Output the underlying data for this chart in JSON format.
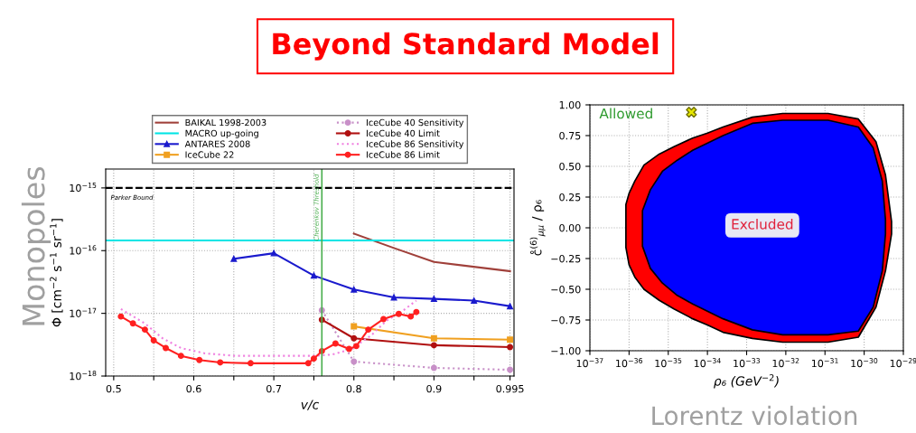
{
  "chart_data": [
    {
      "type": "other",
      "title": "Beyond Standard Model"
    },
    {
      "type": "line",
      "xlabel": "v/c",
      "ylabel": "Φ [cm$^{−2}$ s$^{−1}$ sr$^{−1}$]",
      "log": "y",
      "grid": true,
      "legend": "top",
      "xlim": [
        0.49,
        1.0
      ],
      "ylim": [
        1e-18,
        2e-15
      ],
      "xticks": [
        0.5,
        {
          "value": 0.55,
          "label": null
        },
        0.6,
        {
          "value": 0.65,
          "label": null
        },
        0.7,
        {
          "value": 0.75,
          "label": null
        },
        0.8,
        {
          "value": 0.85,
          "label": null
        },
        0.9,
        {
          "value": 0.95,
          "label": null
        },
        0.995
      ],
      "yticks": [
        {
          "value": 1e-18,
          "label": "10$^{−18}$"
        },
        {
          "value": 1e-17,
          "label": "10$^{−17}$"
        },
        {
          "value": 1e-16,
          "label": "10$^{−16}$"
        },
        {
          "value": 1e-15,
          "label": "10$^{−15}$"
        }
      ],
      "ref_lines": [
        {
          "axis": "y",
          "value": 1e-15,
          "label": "Parker Bound",
          "color": "#000000",
          "line_style": "dashed"
        },
        {
          "axis": "x",
          "value": 0.76,
          "label": "Cherenkov Threshold",
          "color": "#4caf50",
          "line_style": "solid"
        }
      ],
      "annotations": [
        "Monopoles"
      ],
      "series": [
        {
          "name": "BAIKAL 1998-2003",
          "color": "#a0403a",
          "marker": "none",
          "line_style": "solid",
          "x": [
            0.8,
            0.85,
            0.9,
            0.995
          ],
          "values": [
            1.87e-16,
            1.1e-16,
            6.6e-17,
            4.7e-17
          ]
        },
        {
          "name": "MACRO up-going",
          "color": "#00e5e5",
          "marker": "none",
          "line_style": "solid",
          "x": [
            0.49,
            1.0
          ],
          "values": [
            1.45e-16,
            1.45e-16
          ]
        },
        {
          "name": "ANTARES 2008",
          "color": "#1a1acd",
          "marker": "triangle",
          "line_style": "solid",
          "x": [
            0.65,
            0.7,
            0.75,
            0.8,
            0.85,
            0.9,
            0.95,
            0.995
          ],
          "values": [
            7.4e-17,
            9.1e-17,
            4e-17,
            2.4e-17,
            1.8e-17,
            1.7e-17,
            1.6e-17,
            1.3e-17
          ]
        },
        {
          "name": "IceCube 22",
          "color": "#f0a020",
          "marker": "square",
          "line_style": "solid",
          "x": [
            0.8,
            0.9,
            0.995
          ],
          "values": [
            6.2e-18,
            4e-18,
            3.8e-18
          ]
        },
        {
          "name": "IceCube 40 Sensitivity",
          "color": "#c890c8",
          "marker": "circle",
          "line_style": "dotted",
          "x": [
            0.76,
            0.8,
            0.9,
            0.995
          ],
          "values": [
            1.12e-17,
            1.7e-18,
            1.35e-18,
            1.26e-18
          ]
        },
        {
          "name": "IceCube 40 Limit",
          "color": "#b01010",
          "marker": "circle",
          "line_style": "solid",
          "x": [
            0.76,
            0.8,
            0.9,
            0.995
          ],
          "values": [
            7.9e-18,
            4e-18,
            3.1e-18,
            2.9e-18
          ]
        },
        {
          "name": "IceCube 86 Sensitivity",
          "color": "#f080e0",
          "marker": "none",
          "line_style": "dotted",
          "x": [
            0.509,
            0.539,
            0.561,
            0.584,
            0.614,
            0.652,
            0.709,
            0.75,
            0.773,
            0.797,
            0.822,
            0.841,
            0.86,
            0.878
          ],
          "values": [
            1.17e-17,
            6.9e-18,
            4e-18,
            2.8e-18,
            2.3e-18,
            2.1e-18,
            2.1e-18,
            2.1e-18,
            2.2e-18,
            2.7e-18,
            4.5e-18,
            7.7e-18,
            1.07e-17,
            1.6e-17
          ]
        },
        {
          "name": "IceCube 86 Limit",
          "color": "#ff2020",
          "marker": "circle",
          "line_style": "solid",
          "x": [
            0.509,
            0.524,
            0.539,
            0.55,
            0.565,
            0.584,
            0.607,
            0.633,
            0.671,
            0.743,
            0.75,
            0.76,
            0.777,
            0.794,
            0.803,
            0.818,
            0.837,
            0.856,
            0.871,
            0.878
          ],
          "values": [
            8.9e-18,
            6.9e-18,
            5.5e-18,
            3.7e-18,
            2.8e-18,
            2.1e-18,
            1.8e-18,
            1.65e-18,
            1.6e-18,
            1.6e-18,
            1.9e-18,
            2.5e-18,
            3.3e-18,
            2.7e-18,
            3e-18,
            5.5e-18,
            8.1e-18,
            9.8e-18,
            8.9e-18,
            1.05e-17
          ]
        }
      ]
    },
    {
      "type": "area",
      "xlabel": "ρ₆ (GeV$^{−2}$)",
      "ylabel": "c̊$^{(6)}$$_{μμ}$ / ρ₆",
      "log": "x",
      "grid": true,
      "xlim": [
        1e-37,
        1e-29
      ],
      "ylim": [
        -1.0,
        1.0
      ],
      "xticks": [
        {
          "value": 1e-37,
          "label": "10$^{−37}$"
        },
        {
          "value": 1e-36,
          "label": "10$^{−36}$"
        },
        {
          "value": 1e-35,
          "label": "10$^{−35}$"
        },
        {
          "value": 1e-34,
          "label": "10$^{−34}$"
        },
        {
          "value": 1e-33,
          "label": "10$^{−33}$"
        },
        {
          "value": 1e-32,
          "label": "10$^{−32}$"
        },
        {
          "value": 1e-31,
          "label": "10$^{−31}$"
        },
        {
          "value": 1e-30,
          "label": "10$^{−30}$"
        },
        {
          "value": 1e-29,
          "label": "10$^{−29}$"
        }
      ],
      "yticks": [
        {
          "value": -1.0,
          "label": "−1.00"
        },
        {
          "value": -0.75,
          "label": "−0.75"
        },
        {
          "value": -0.5,
          "label": "−0.50"
        },
        {
          "value": -0.25,
          "label": "−0.25"
        },
        {
          "value": 0.0,
          "label": "0.00"
        },
        {
          "value": 0.25,
          "label": "0.25"
        },
        {
          "value": 0.5,
          "label": "0.50"
        },
        {
          "value": 0.75,
          "label": "0.75"
        },
        {
          "value": 1.0,
          "label": "1.00"
        }
      ],
      "annotations": [
        "Allowed",
        "Excluded",
        "Lorentz violation"
      ],
      "series": [
        {
          "type": "area",
          "color": "#ff0000",
          "x": [
            8.3e-37,
            1e-36,
            1.4e-36,
            2.4e-36,
            5.9e-36,
            1.4e-35,
            4.2e-35,
            1e-34,
            2.5e-34,
            1.4e-33,
            8.3e-33,
            1.2e-31,
            7.1e-31,
            2e-30,
            3.5e-30,
            5e-30,
            5e-30,
            3.5e-30,
            2e-30,
            7.1e-31,
            1.2e-31,
            8.3e-33,
            1.4e-33,
            2.5e-34,
            1e-34,
            4.2e-35,
            1.4e-35,
            5.9e-36,
            2.4e-36,
            1.4e-36,
            1e-36,
            8.3e-37
          ],
          "values": [
            0.19,
            0.28,
            0.38,
            0.51,
            0.6,
            0.66,
            0.73,
            0.77,
            0.82,
            0.9,
            0.93,
            0.93,
            0.885,
            0.7,
            0.43,
            0.05,
            -0.05,
            -0.35,
            -0.645,
            -0.89,
            -0.93,
            -0.93,
            -0.9,
            -0.85,
            -0.79,
            -0.74,
            -0.66,
            -0.59,
            -0.5,
            -0.4,
            -0.3,
            -0.16
          ]
        },
        {
          "type": "area",
          "color": "#0000ff",
          "x": [
            2.2e-36,
            3.5e-36,
            7.1e-36,
            1.7e-35,
            4.2e-35,
            2.5e-34,
            1.4e-33,
            8.3e-33,
            1.2e-31,
            7.1e-31,
            1.7e-30,
            2.9e-30,
            3.5e-30,
            3.5e-30,
            2.9e-30,
            1.7e-30,
            7.1e-31,
            1.2e-31,
            8.3e-33,
            1.4e-33,
            2.5e-34,
            4.2e-35,
            1.7e-35,
            7.1e-36,
            3.5e-36,
            2.2e-36
          ],
          "values": [
            0.14,
            0.31,
            0.46,
            0.55,
            0.63,
            0.75,
            0.85,
            0.875,
            0.875,
            0.82,
            0.65,
            0.38,
            0.065,
            -0.05,
            -0.35,
            -0.645,
            -0.84,
            -0.87,
            -0.87,
            -0.83,
            -0.74,
            -0.62,
            -0.55,
            -0.45,
            -0.33,
            -0.15
          ]
        },
        {
          "type": "scatter",
          "color": "#e8e800",
          "marker": "cross",
          "x": [
            3.9e-35
          ],
          "values": [
            0.94
          ]
        }
      ]
    }
  ]
}
